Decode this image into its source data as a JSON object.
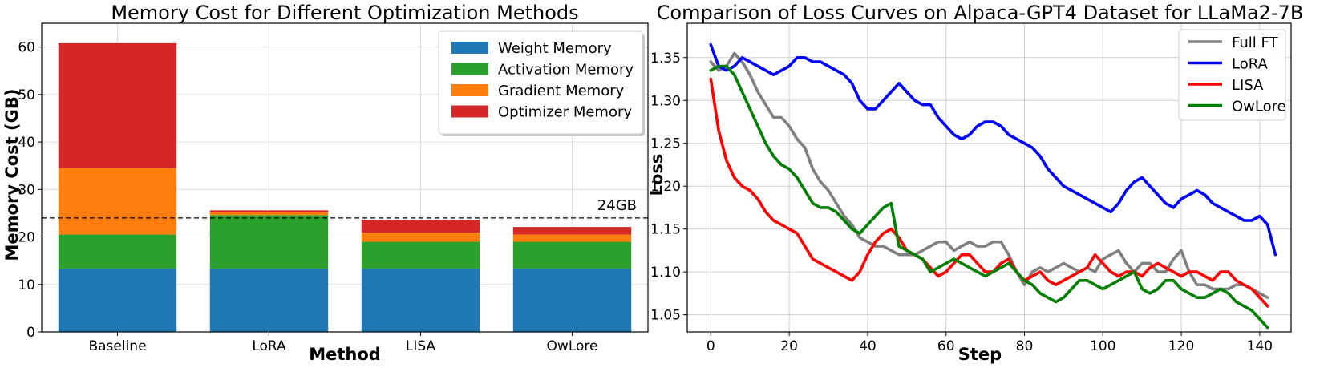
{
  "chart_data": [
    {
      "type": "bar",
      "stacked": true,
      "title": "Memory Cost for Different Optimization Methods",
      "xlabel": "Method",
      "ylabel": "Memory Cost (GB)",
      "ylim": [
        0,
        65
      ],
      "yticks": [
        "0",
        "10",
        "20",
        "30",
        "40",
        "50",
        "60"
      ],
      "grid": true,
      "legend_position": "top-right",
      "categories": [
        "Baseline",
        "LoRA",
        "LISA",
        "OwLore"
      ],
      "series": [
        {
          "name": "Weight Memory",
          "color": "#1f77b4",
          "values": [
            13.3,
            13.3,
            13.3,
            13.3
          ]
        },
        {
          "name": "Activation Memory",
          "color": "#2ca02c",
          "values": [
            7.2,
            11.3,
            5.7,
            5.7
          ]
        },
        {
          "name": "Gradient Memory",
          "color": "#ff7f0e",
          "values": [
            14.0,
            0.7,
            1.9,
            1.5
          ]
        },
        {
          "name": "Optimizer Memory",
          "color": "#d62728",
          "values": [
            26.3,
            0.3,
            2.7,
            1.6
          ]
        }
      ],
      "reference_line": {
        "value": 24,
        "label": "24GB",
        "style": "dashed"
      }
    },
    {
      "type": "line",
      "title": "Comparison of Loss Curves on Alpaca-GPT4 Dataset for LLaMa2-7B",
      "xlabel": "Step",
      "ylabel": "Loss",
      "xlim": [
        -6,
        148
      ],
      "ylim": [
        1.03,
        1.39
      ],
      "xticks": [
        "0",
        "20",
        "40",
        "60",
        "80",
        "100",
        "120",
        "140"
      ],
      "yticks": [
        "1.05",
        "1.10",
        "1.15",
        "1.20",
        "1.25",
        "1.30",
        "1.35"
      ],
      "grid": true,
      "legend_position": "top-right",
      "x_start": 0,
      "x_step": 2,
      "series": [
        {
          "name": "Full FT",
          "color": "#808080",
          "values": [
            1.345,
            1.335,
            1.34,
            1.355,
            1.345,
            1.33,
            1.31,
            1.295,
            1.28,
            1.28,
            1.27,
            1.255,
            1.245,
            1.22,
            1.205,
            1.195,
            1.18,
            1.165,
            1.155,
            1.14,
            1.135,
            1.13,
            1.13,
            1.125,
            1.12,
            1.12,
            1.12,
            1.125,
            1.13,
            1.135,
            1.135,
            1.125,
            1.13,
            1.135,
            1.13,
            1.13,
            1.135,
            1.135,
            1.12,
            1.1,
            1.085,
            1.1,
            1.105,
            1.1,
            1.105,
            1.11,
            1.105,
            1.1,
            1.105,
            1.1,
            1.115,
            1.12,
            1.125,
            1.11,
            1.1,
            1.11,
            1.11,
            1.1,
            1.1,
            1.115,
            1.125,
            1.1,
            1.085,
            1.085,
            1.08,
            1.08,
            1.08,
            1.085,
            1.085,
            1.08,
            1.075,
            1.07
          ]
        },
        {
          "name": "LoRA",
          "color": "#0000ff",
          "values": [
            1.365,
            1.34,
            1.335,
            1.34,
            1.35,
            1.345,
            1.34,
            1.335,
            1.33,
            1.335,
            1.34,
            1.35,
            1.35,
            1.345,
            1.345,
            1.34,
            1.335,
            1.33,
            1.32,
            1.3,
            1.29,
            1.29,
            1.3,
            1.31,
            1.32,
            1.31,
            1.3,
            1.295,
            1.295,
            1.28,
            1.27,
            1.26,
            1.255,
            1.26,
            1.27,
            1.275,
            1.275,
            1.27,
            1.26,
            1.255,
            1.25,
            1.245,
            1.235,
            1.22,
            1.21,
            1.2,
            1.195,
            1.19,
            1.185,
            1.18,
            1.175,
            1.17,
            1.18,
            1.195,
            1.205,
            1.21,
            1.2,
            1.19,
            1.18,
            1.175,
            1.185,
            1.19,
            1.195,
            1.19,
            1.18,
            1.175,
            1.17,
            1.165,
            1.16,
            1.16,
            1.165,
            1.155,
            1.12
          ]
        },
        {
          "name": "LISA",
          "color": "#ff0000",
          "values": [
            1.325,
            1.265,
            1.23,
            1.21,
            1.2,
            1.195,
            1.185,
            1.17,
            1.16,
            1.155,
            1.15,
            1.145,
            1.13,
            1.115,
            1.11,
            1.105,
            1.1,
            1.095,
            1.09,
            1.1,
            1.12,
            1.135,
            1.145,
            1.15,
            1.14,
            1.125,
            1.12,
            1.115,
            1.105,
            1.095,
            1.1,
            1.11,
            1.12,
            1.12,
            1.11,
            1.1,
            1.1,
            1.11,
            1.115,
            1.1,
            1.09,
            1.095,
            1.1,
            1.09,
            1.085,
            1.09,
            1.095,
            1.1,
            1.105,
            1.12,
            1.11,
            1.1,
            1.095,
            1.1,
            1.1,
            1.095,
            1.105,
            1.11,
            1.105,
            1.1,
            1.095,
            1.1,
            1.1,
            1.095,
            1.09,
            1.1,
            1.1,
            1.09,
            1.085,
            1.08,
            1.07,
            1.06
          ]
        },
        {
          "name": "OwLore",
          "color": "#008000",
          "values": [
            1.335,
            1.34,
            1.34,
            1.33,
            1.31,
            1.29,
            1.27,
            1.25,
            1.235,
            1.225,
            1.22,
            1.21,
            1.195,
            1.18,
            1.175,
            1.175,
            1.17,
            1.16,
            1.15,
            1.145,
            1.155,
            1.165,
            1.175,
            1.18,
            1.13,
            1.125,
            1.12,
            1.115,
            1.1,
            1.105,
            1.11,
            1.115,
            1.11,
            1.105,
            1.1,
            1.095,
            1.1,
            1.105,
            1.11,
            1.1,
            1.09,
            1.085,
            1.075,
            1.07,
            1.065,
            1.07,
            1.08,
            1.09,
            1.09,
            1.085,
            1.08,
            1.085,
            1.09,
            1.095,
            1.1,
            1.08,
            1.075,
            1.08,
            1.09,
            1.09,
            1.08,
            1.075,
            1.07,
            1.07,
            1.075,
            1.08,
            1.075,
            1.065,
            1.06,
            1.055,
            1.045,
            1.035
          ]
        }
      ]
    }
  ]
}
